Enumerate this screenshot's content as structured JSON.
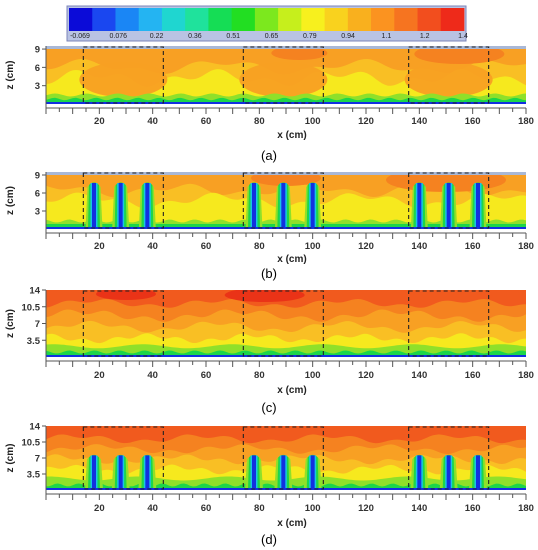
{
  "colorbar": {
    "labels": [
      "-0.069",
      "0.076",
      "0.22",
      "0.36",
      "0.51",
      "0.65",
      "0.79",
      "0.94",
      "1.1",
      "1.2",
      "1.4"
    ],
    "colors": [
      "#0b0bd8",
      "#1a47f0",
      "#1a86f5",
      "#24b4f2",
      "#1fd6d0",
      "#1fe29c",
      "#15dd55",
      "#22de22",
      "#7ce81e",
      "#c6ef1c",
      "#f7f01e",
      "#f9d21e",
      "#f9b01e",
      "#fb9320",
      "#f67420",
      "#f24e1e",
      "#ee2a1a"
    ]
  },
  "chart_data": [
    {
      "type": "heatmap",
      "panel_label": "(a)",
      "xlabel": "x (cm)",
      "ylabel": "z (cm)",
      "xlim": [
        0,
        180
      ],
      "ylim": [
        0,
        9.5
      ],
      "xticks": [
        "20",
        "40",
        "60",
        "80",
        "100",
        "120",
        "140",
        "160",
        "180"
      ],
      "yticks": [
        "3",
        "6",
        "9"
      ],
      "dashed_regions_x": [
        [
          14,
          44
        ],
        [
          74,
          104
        ],
        [
          136,
          166
        ]
      ],
      "roughness_elements_x": []
    },
    {
      "type": "heatmap",
      "panel_label": "(b)",
      "xlabel": "x (cm)",
      "ylabel": "z (cm)",
      "xlim": [
        0,
        180
      ],
      "ylim": [
        0,
        9.5
      ],
      "xticks": [
        "20",
        "40",
        "60",
        "80",
        "100",
        "120",
        "140",
        "160",
        "180"
      ],
      "yticks": [
        "3",
        "6",
        "9"
      ],
      "dashed_regions_x": [
        [
          14,
          44
        ],
        [
          74,
          104
        ],
        [
          136,
          166
        ]
      ],
      "roughness_elements_x": [
        18,
        28,
        38,
        78,
        89,
        100,
        140,
        151,
        162
      ],
      "roughness_height_cm": 8
    },
    {
      "type": "heatmap",
      "panel_label": "(c)",
      "xlabel": "x (cm)",
      "ylabel": "z (cm)",
      "xlim": [
        0,
        180
      ],
      "ylim": [
        0,
        14
      ],
      "xticks": [
        "20",
        "40",
        "60",
        "80",
        "100",
        "120",
        "140",
        "160",
        "180"
      ],
      "yticks": [
        "3.5",
        "7",
        "10.5",
        "14"
      ],
      "dashed_regions_x": [
        [
          14,
          44
        ],
        [
          74,
          104
        ],
        [
          136,
          166
        ]
      ],
      "roughness_elements_x": []
    },
    {
      "type": "heatmap",
      "panel_label": "(d)",
      "xlabel": "x (cm)",
      "ylabel": "z (cm)",
      "xlim": [
        0,
        180
      ],
      "ylim": [
        0,
        14
      ],
      "xticks": [
        "20",
        "40",
        "60",
        "80",
        "100",
        "120",
        "140",
        "160",
        "180"
      ],
      "yticks": [
        "3.5",
        "7",
        "10.5",
        "14"
      ],
      "dashed_regions_x": [
        [
          14,
          44
        ],
        [
          74,
          104
        ],
        [
          136,
          166
        ]
      ],
      "roughness_elements_x": [
        18,
        28,
        38,
        78,
        89,
        100,
        140,
        151,
        162
      ],
      "roughness_height_cm": 8
    }
  ]
}
